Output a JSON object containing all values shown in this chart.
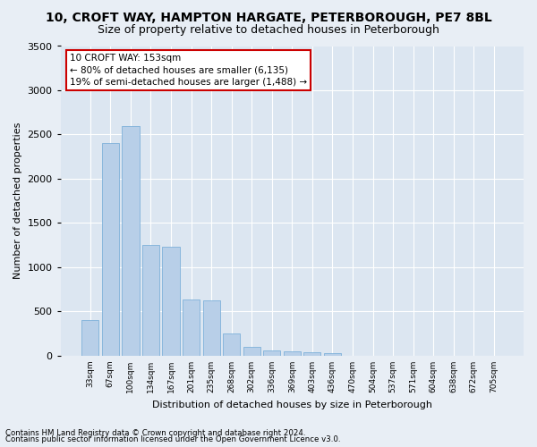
{
  "title_line1": "10, CROFT WAY, HAMPTON HARGATE, PETERBOROUGH, PE7 8BL",
  "title_line2": "Size of property relative to detached houses in Peterborough",
  "xlabel": "Distribution of detached houses by size in Peterborough",
  "ylabel": "Number of detached properties",
  "footnote1": "Contains HM Land Registry data © Crown copyright and database right 2024.",
  "footnote2": "Contains public sector information licensed under the Open Government Licence v3.0.",
  "annotation_title": "10 CROFT WAY: 153sqm",
  "annotation_line2": "← 80% of detached houses are smaller (6,135)",
  "annotation_line3": "19% of semi-detached houses are larger (1,488) →",
  "categories": [
    "33sqm",
    "67sqm",
    "100sqm",
    "134sqm",
    "167sqm",
    "201sqm",
    "235sqm",
    "268sqm",
    "302sqm",
    "336sqm",
    "369sqm",
    "403sqm",
    "436sqm",
    "470sqm",
    "504sqm",
    "537sqm",
    "571sqm",
    "604sqm",
    "638sqm",
    "672sqm",
    "705sqm"
  ],
  "bar_heights": [
    400,
    2400,
    2600,
    1250,
    1230,
    640,
    630,
    255,
    100,
    55,
    50,
    40,
    30,
    0,
    0,
    0,
    0,
    0,
    0,
    0,
    0
  ],
  "bar_color": "#b8cfe8",
  "bar_edge_color": "#6fa8d6",
  "background_color": "#e8eef5",
  "plot_bg_color": "#dce6f1",
  "annotation_box_color": "#ffffff",
  "annotation_border_color": "#cc0000",
  "ylim": [
    0,
    3500
  ],
  "yticks": [
    0,
    500,
    1000,
    1500,
    2000,
    2500,
    3000,
    3500
  ],
  "grid_color": "#ffffff",
  "title_fontsize": 10,
  "subtitle_fontsize": 9,
  "bar_width": 0.85
}
